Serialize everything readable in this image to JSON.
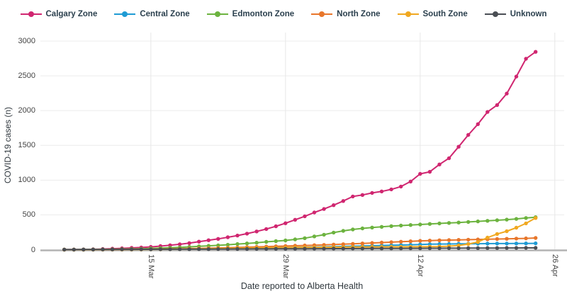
{
  "chart_data": {
    "type": "line",
    "title": "",
    "xlabel": "Date reported to Alberta Health",
    "ylabel": "COVID-19 cases (n)",
    "ylim": [
      0,
      3000
    ],
    "grid": true,
    "legend_position": "top",
    "y_ticks": [
      0,
      500,
      1000,
      1500,
      2000,
      2500,
      3000
    ],
    "x_ticks": [
      {
        "label": "15 Mar",
        "index": 9
      },
      {
        "label": "29 Mar",
        "index": 23
      },
      {
        "label": "12 Apr",
        "index": 37
      },
      {
        "label": "26 Apr",
        "index": 51
      }
    ],
    "x": [
      "6 Mar",
      "7 Mar",
      "8 Mar",
      "9 Mar",
      "10 Mar",
      "11 Mar",
      "12 Mar",
      "13 Mar",
      "14 Mar",
      "15 Mar",
      "16 Mar",
      "17 Mar",
      "18 Mar",
      "19 Mar",
      "20 Mar",
      "21 Mar",
      "22 Mar",
      "23 Mar",
      "24 Mar",
      "25 Mar",
      "26 Mar",
      "27 Mar",
      "28 Mar",
      "29 Mar",
      "30 Mar",
      "31 Mar",
      "1 Apr",
      "2 Apr",
      "3 Apr",
      "4 Apr",
      "5 Apr",
      "6 Apr",
      "7 Apr",
      "8 Apr",
      "9 Apr",
      "10 Apr",
      "11 Apr",
      "12 Apr",
      "13 Apr",
      "14 Apr",
      "15 Apr",
      "16 Apr",
      "17 Apr",
      "18 Apr",
      "19 Apr",
      "20 Apr",
      "21 Apr",
      "22 Apr",
      "23 Apr",
      "24 Apr"
    ],
    "series": [
      {
        "name": "Calgary Zone",
        "color": "#d02670",
        "values": [
          1,
          2,
          3,
          5,
          9,
          14,
          19,
          25,
          32,
          40,
          51,
          63,
          77,
          94,
          115,
          135,
          155,
          178,
          203,
          230,
          262,
          296,
          336,
          380,
          430,
          480,
          535,
          585,
          640,
          700,
          765,
          786,
          816,
          837,
          867,
          908,
          980,
          1090,
          1120,
          1225,
          1315,
          1480,
          1650,
          1805,
          1980,
          2080,
          2245,
          2490,
          2745,
          2845
        ]
      },
      {
        "name": "Central Zone",
        "color": "#1f9bd4",
        "values": [
          0,
          0,
          0,
          1,
          1,
          2,
          2,
          3,
          4,
          5,
          6,
          7,
          8,
          10,
          12,
          14,
          16,
          18,
          20,
          22,
          25,
          28,
          30,
          32,
          34,
          36,
          38,
          41,
          44,
          47,
          50,
          53,
          56,
          60,
          63,
          66,
          70,
          74,
          78,
          80,
          82,
          84,
          85,
          86,
          87,
          88,
          88,
          89,
          90,
          91
        ]
      },
      {
        "name": "Edmonton Zone",
        "color": "#6cb33f",
        "values": [
          1,
          1,
          2,
          3,
          4,
          6,
          8,
          10,
          13,
          18,
          22,
          27,
          33,
          40,
          48,
          55,
          62,
          70,
          80,
          90,
          100,
          112,
          122,
          132,
          148,
          165,
          190,
          215,
          245,
          270,
          290,
          306,
          318,
          328,
          338,
          346,
          355,
          362,
          370,
          377,
          384,
          390,
          398,
          406,
          415,
          423,
          432,
          442,
          455,
          467
        ]
      },
      {
        "name": "North Zone",
        "color": "#e8762b",
        "values": [
          0,
          0,
          0,
          1,
          1,
          2,
          3,
          4,
          5,
          6,
          8,
          10,
          12,
          15,
          18,
          21,
          24,
          28,
          32,
          36,
          40,
          44,
          48,
          52,
          56,
          60,
          64,
          68,
          73,
          78,
          84,
          90,
          96,
          102,
          108,
          114,
          120,
          126,
          130,
          134,
          138,
          141,
          144,
          147,
          150,
          153,
          156,
          159,
          162,
          168
        ]
      },
      {
        "name": "South Zone",
        "color": "#f0a820",
        "values": [
          0,
          0,
          0,
          0,
          1,
          1,
          2,
          2,
          3,
          4,
          5,
          6,
          8,
          10,
          12,
          14,
          16,
          18,
          20,
          22,
          24,
          26,
          28,
          30,
          32,
          33,
          34,
          35,
          36,
          37,
          38,
          39,
          40,
          40,
          41,
          41,
          42,
          42,
          43,
          45,
          50,
          60,
          80,
          110,
          173,
          225,
          265,
          316,
          378,
          455
        ]
      },
      {
        "name": "Unknown",
        "color": "#4a4e54",
        "values": [
          1,
          1,
          2,
          2,
          3,
          3,
          4,
          4,
          5,
          5,
          6,
          6,
          7,
          7,
          8,
          8,
          9,
          9,
          10,
          10,
          11,
          11,
          12,
          12,
          13,
          13,
          14,
          14,
          15,
          15,
          16,
          16,
          17,
          17,
          18,
          18,
          19,
          19,
          20,
          20,
          21,
          21,
          22,
          22,
          23,
          23,
          24,
          24,
          25,
          25
        ]
      }
    ]
  }
}
